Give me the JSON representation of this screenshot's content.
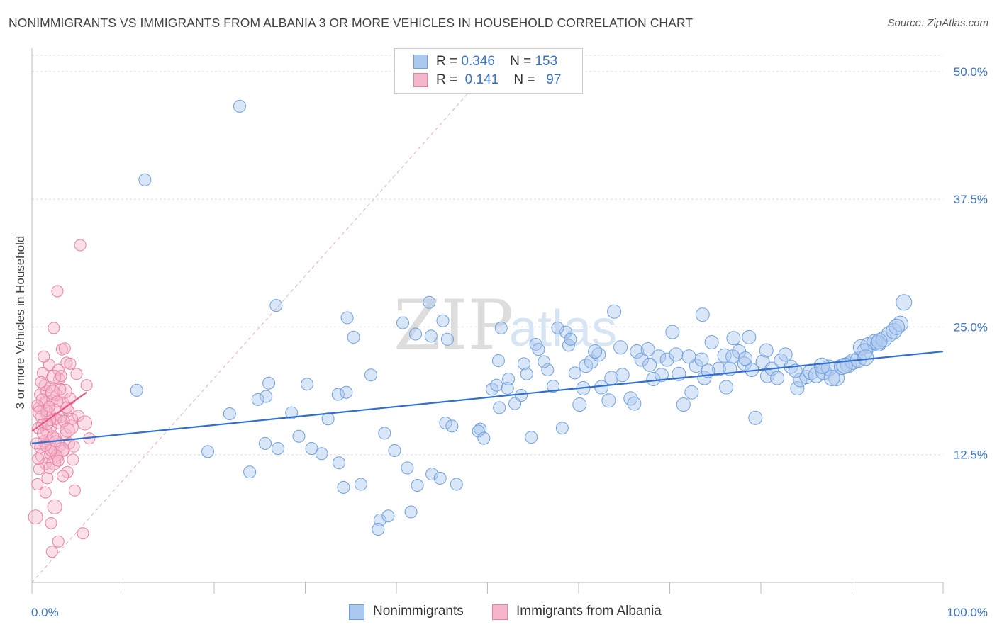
{
  "header": {
    "title": "NONIMMIGRANTS VS IMMIGRANTS FROM ALBANIA 3 OR MORE VEHICLES IN HOUSEHOLD CORRELATION CHART",
    "source": "Source: ZipAtlas.com"
  },
  "watermark": {
    "zip": "ZIP",
    "atlas": "atlas"
  },
  "legend": {
    "rows": [
      {
        "r_label": "R =",
        "r_value": "0.346",
        "n_label": "N =",
        "n_value": "153",
        "color": "#aac8f0"
      },
      {
        "r_label": "R =",
        "r_value": "0.141",
        "n_label": "N =",
        "n_value": "97",
        "color": "#f5b6cb"
      }
    ]
  },
  "colors": {
    "nonimmigrants_fill": "#aac8f0",
    "nonimmigrants_stroke": "#6f9fdd",
    "nonimmigrants_line": "#2f6fcf",
    "albania_fill": "#f5b6cb",
    "albania_stroke": "#ea7fa2",
    "albania_line": "#e8557f",
    "tick_label": "#3a72c6",
    "grid": "#dcdcdc"
  },
  "chart_data": {
    "type": "scatter",
    "title": "NONIMMIGRANTS VS IMMIGRANTS FROM ALBANIA 3 OR MORE VEHICLES IN HOUSEHOLD CORRELATION CHART",
    "xlabel": "",
    "ylabel": "3 or more Vehicles in Household",
    "xlim": [
      0,
      100
    ],
    "ylim": [
      0,
      52
    ],
    "x_tick_labels": [
      "0.0%",
      "100.0%"
    ],
    "y_ticks": [
      12.5,
      25.0,
      37.5,
      50.0
    ],
    "y_tick_labels": [
      "12.5%",
      "25.0%",
      "37.5%",
      "50.0%"
    ],
    "grid": "horizontal dashed",
    "legend_position": "top-center",
    "series": [
      {
        "name": "Nonimmigrants",
        "r": 0.346,
        "n": 153,
        "trend": {
          "x": [
            0,
            100
          ],
          "y": [
            13.6,
            22.6
          ]
        },
        "points": [
          [
            22.8,
            46.6
          ],
          [
            12.4,
            39.4
          ],
          [
            11.5,
            18.8
          ],
          [
            26.8,
            27.1
          ],
          [
            21.7,
            16.5
          ],
          [
            19.3,
            12.8
          ],
          [
            23.9,
            10.8
          ],
          [
            26.0,
            19.5
          ],
          [
            25.7,
            18.2
          ],
          [
            24.8,
            17.9
          ],
          [
            25.6,
            13.6
          ],
          [
            27.0,
            13.1
          ],
          [
            28.5,
            16.6
          ],
          [
            29.3,
            14.3
          ],
          [
            30.2,
            19.4
          ],
          [
            30.7,
            13.1
          ],
          [
            31.8,
            12.6
          ],
          [
            32.5,
            16.0
          ],
          [
            33.6,
            18.4
          ],
          [
            34.5,
            18.6
          ],
          [
            33.7,
            11.7
          ],
          [
            34.2,
            9.3
          ],
          [
            36.1,
            9.6
          ],
          [
            34.6,
            25.9
          ],
          [
            35.3,
            24.0
          ],
          [
            37.2,
            20.3
          ],
          [
            38.7,
            14.6
          ],
          [
            39.8,
            12.9
          ],
          [
            38.2,
            6.1
          ],
          [
            39.1,
            6.5
          ],
          [
            38.0,
            5.2
          ],
          [
            41.2,
            11.2
          ],
          [
            41.6,
            6.9
          ],
          [
            42.3,
            9.5
          ],
          [
            43.9,
            10.6
          ],
          [
            44.8,
            10.2
          ],
          [
            45.4,
            15.6
          ],
          [
            43.8,
            24.1
          ],
          [
            43.6,
            27.4
          ],
          [
            45.1,
            25.6
          ],
          [
            45.6,
            23.8
          ],
          [
            46.1,
            15.3
          ],
          [
            46.6,
            9.6
          ],
          [
            49.2,
            15.0
          ],
          [
            49.0,
            14.8
          ],
          [
            49.6,
            14.1
          ],
          [
            50.5,
            18.9
          ],
          [
            51.3,
            17.1
          ],
          [
            51.0,
            19.3
          ],
          [
            52.2,
            19.0
          ],
          [
            51.5,
            24.9
          ],
          [
            52.3,
            19.9
          ],
          [
            53.0,
            17.5
          ],
          [
            53.7,
            18.3
          ],
          [
            54.0,
            21.4
          ],
          [
            54.3,
            20.4
          ],
          [
            54.8,
            14.2
          ],
          [
            55.3,
            23.3
          ],
          [
            55.6,
            22.8
          ],
          [
            56.6,
            20.8
          ],
          [
            57.2,
            19.2
          ],
          [
            58.2,
            15.1
          ],
          [
            58.6,
            24.5
          ],
          [
            58.9,
            23.2
          ],
          [
            59.6,
            20.5
          ],
          [
            60.1,
            17.4
          ],
          [
            60.5,
            19.0
          ],
          [
            60.8,
            21.2
          ],
          [
            61.4,
            21.6
          ],
          [
            62.2,
            22.3
          ],
          [
            62.5,
            19.1
          ],
          [
            63.3,
            17.8
          ],
          [
            63.6,
            20.0
          ],
          [
            64.6,
            23.0
          ],
          [
            64.8,
            20.3
          ],
          [
            65.7,
            18.0
          ],
          [
            66.1,
            17.5
          ],
          [
            66.4,
            22.6
          ],
          [
            66.9,
            21.8
          ],
          [
            67.6,
            22.8
          ],
          [
            68.2,
            19.9
          ],
          [
            68.8,
            22.1
          ],
          [
            69.1,
            20.3
          ],
          [
            69.7,
            21.8
          ],
          [
            70.7,
            22.3
          ],
          [
            71.0,
            20.4
          ],
          [
            71.5,
            17.4
          ],
          [
            72.4,
            18.6
          ],
          [
            72.9,
            21.2
          ],
          [
            73.5,
            21.8
          ],
          [
            73.8,
            20.0
          ],
          [
            74.6,
            23.5
          ],
          [
            75.4,
            20.9
          ],
          [
            76.0,
            22.2
          ],
          [
            76.6,
            20.9
          ],
          [
            76.2,
            19.1
          ],
          [
            77.0,
            23.9
          ],
          [
            77.6,
            22.6
          ],
          [
            78.2,
            21.4
          ],
          [
            78.7,
            24.0
          ],
          [
            79.0,
            20.8
          ],
          [
            79.4,
            16.1
          ],
          [
            80.2,
            21.6
          ],
          [
            80.7,
            20.2
          ],
          [
            81.2,
            20.9
          ],
          [
            81.8,
            20.0
          ],
          [
            82.2,
            21.7
          ],
          [
            82.7,
            22.3
          ],
          [
            83.3,
            21.1
          ],
          [
            84.0,
            19.0
          ],
          [
            84.3,
            19.8
          ],
          [
            85.0,
            20.1
          ],
          [
            85.5,
            20.6
          ],
          [
            86.1,
            20.3
          ],
          [
            86.9,
            20.6
          ],
          [
            87.5,
            21.0
          ],
          [
            88.3,
            20.0
          ],
          [
            88.9,
            21.1
          ],
          [
            89.6,
            21.3
          ],
          [
            90.1,
            21.6
          ],
          [
            90.7,
            21.8
          ],
          [
            91.0,
            23.0
          ],
          [
            91.8,
            23.2
          ],
          [
            92.5,
            23.5
          ],
          [
            92.9,
            23.4
          ],
          [
            93.5,
            23.8
          ],
          [
            94.1,
            24.3
          ],
          [
            94.6,
            24.6
          ],
          [
            95.3,
            25.3
          ],
          [
            95.7,
            27.4
          ],
          [
            63.9,
            26.5
          ],
          [
            73.6,
            26.2
          ],
          [
            40.7,
            25.4
          ],
          [
            42.1,
            24.3
          ],
          [
            51.2,
            21.7
          ],
          [
            56.2,
            21.6
          ],
          [
            57.7,
            24.9
          ],
          [
            59.1,
            23.8
          ],
          [
            61.8,
            22.6
          ],
          [
            67.8,
            21.3
          ],
          [
            70.3,
            24.5
          ],
          [
            72.1,
            22.1
          ],
          [
            74.2,
            20.7
          ],
          [
            76.9,
            22.1
          ],
          [
            78.3,
            21.9
          ],
          [
            80.6,
            22.7
          ],
          [
            83.8,
            20.7
          ],
          [
            86.7,
            21.2
          ],
          [
            87.8,
            20.0
          ],
          [
            89.2,
            21.2
          ],
          [
            91.4,
            22.6
          ],
          [
            93.0,
            23.6
          ],
          [
            94.9,
            25.0
          ],
          [
            91.5,
            22.0
          ]
        ]
      },
      {
        "name": "Immigrants from Albania",
        "r": 0.141,
        "n": 97,
        "trend": {
          "x": [
            0,
            6.0
          ],
          "y": [
            14.8,
            18.6
          ]
        },
        "points": [
          [
            0.4,
            6.4
          ],
          [
            0.6,
            9.6
          ],
          [
            0.8,
            17.1
          ],
          [
            0.9,
            18.4
          ],
          [
            1.0,
            16.2
          ],
          [
            1.1,
            15.4
          ],
          [
            1.2,
            20.5
          ],
          [
            1.2,
            12.4
          ],
          [
            1.3,
            13.8
          ],
          [
            1.4,
            17.6
          ],
          [
            1.5,
            11.6
          ],
          [
            1.6,
            14.8
          ],
          [
            1.6,
            18.7
          ],
          [
            1.7,
            10.2
          ],
          [
            1.8,
            16.5
          ],
          [
            1.9,
            21.3
          ],
          [
            2.0,
            12.6
          ],
          [
            2.0,
            19.1
          ],
          [
            2.1,
            15.2
          ],
          [
            2.2,
            17.8
          ],
          [
            2.3,
            13.1
          ],
          [
            2.4,
            11.7
          ],
          [
            2.4,
            24.9
          ],
          [
            2.5,
            16.9
          ],
          [
            2.6,
            14.1
          ],
          [
            2.7,
            18.3
          ],
          [
            2.8,
            12.2
          ],
          [
            2.9,
            20.8
          ],
          [
            3.0,
            15.7
          ],
          [
            3.0,
            19.9
          ],
          [
            3.1,
            13.4
          ],
          [
            3.2,
            16.2
          ],
          [
            3.3,
            22.8
          ],
          [
            3.4,
            17.6
          ],
          [
            3.5,
            12.9
          ],
          [
            3.6,
            18.7
          ],
          [
            3.7,
            14.5
          ],
          [
            3.8,
            21.5
          ],
          [
            3.9,
            10.8
          ],
          [
            4.0,
            16.8
          ],
          [
            4.1,
            13.6
          ],
          [
            4.2,
            18.0
          ],
          [
            4.3,
            15.2
          ],
          [
            4.5,
            12.0
          ],
          [
            4.7,
            9.0
          ],
          [
            4.9,
            20.4
          ],
          [
            5.1,
            16.3
          ],
          [
            5.3,
            33.0
          ],
          [
            5.6,
            4.8
          ],
          [
            5.8,
            15.6
          ],
          [
            6.0,
            19.3
          ],
          [
            6.3,
            14.1
          ],
          [
            2.1,
            5.8
          ],
          [
            2.8,
            28.5
          ],
          [
            1.3,
            22.1
          ],
          [
            3.6,
            22.9
          ],
          [
            2.5,
            7.4
          ],
          [
            2.2,
            3.0
          ],
          [
            2.9,
            4.0
          ],
          [
            1.5,
            8.8
          ],
          [
            0.9,
            13.2
          ],
          [
            1.8,
            14.0
          ],
          [
            2.6,
            16.0
          ],
          [
            3.3,
            13.0
          ],
          [
            1.1,
            17.9
          ],
          [
            2.0,
            15.9
          ],
          [
            3.1,
            18.9
          ],
          [
            4.4,
            16.0
          ],
          [
            0.7,
            15.1
          ],
          [
            1.4,
            19.3
          ],
          [
            2.3,
            18.6
          ],
          [
            3.8,
            17.1
          ],
          [
            1.9,
            11.2
          ],
          [
            2.7,
            12.4
          ],
          [
            4.2,
            21.4
          ],
          [
            1.6,
            16.8
          ],
          [
            0.8,
            11.1
          ],
          [
            2.4,
            20.1
          ],
          [
            3.5,
            15.8
          ],
          [
            1.2,
            14.6
          ],
          [
            2.9,
            11.9
          ],
          [
            0.5,
            13.6
          ],
          [
            1.7,
            15.5
          ],
          [
            2.1,
            12.9
          ],
          [
            3.9,
            14.9
          ],
          [
            0.6,
            17.3
          ],
          [
            2.8,
            17.7
          ],
          [
            1.0,
            19.6
          ],
          [
            3.4,
            10.4
          ],
          [
            2.3,
            14.3
          ],
          [
            1.5,
            13.4
          ],
          [
            0.9,
            16.6
          ],
          [
            4.6,
            13.3
          ],
          [
            2.6,
            13.8
          ],
          [
            1.9,
            17.2
          ],
          [
            3.2,
            20.2
          ],
          [
            0.7,
            12.1
          ]
        ]
      }
    ]
  }
}
